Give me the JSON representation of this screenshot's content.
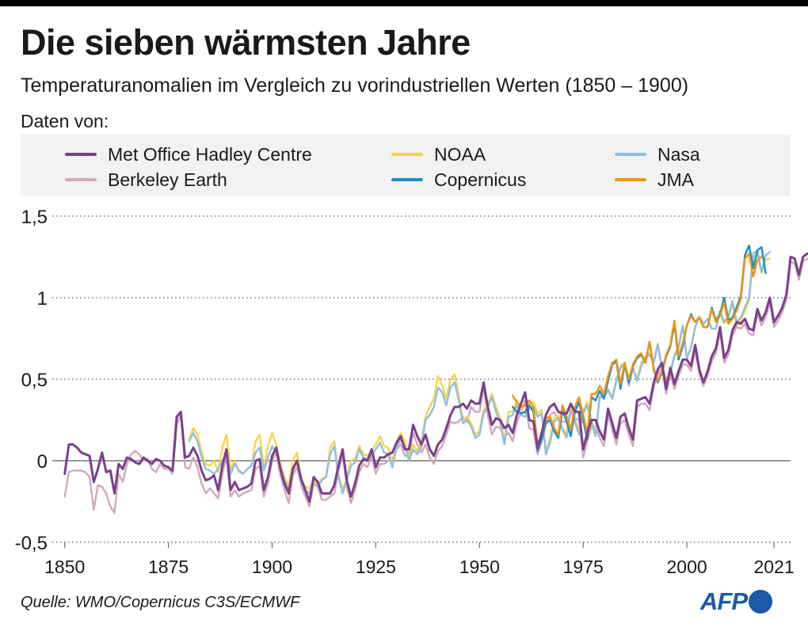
{
  "header": {
    "title": "Die sieben wärmsten Jahre",
    "subtitle": "Temperaturanomalien im Vergleich zu vorindustriellen Werten (1850 – 1900)",
    "legend_caption": "Daten von:"
  },
  "footer": {
    "source": "Quelle: WMO/Copernicus C3S/ECMWF",
    "logo": "AFP"
  },
  "colors": {
    "hadcrut": "#7b3f8c",
    "berkeley": "#d2a7bc",
    "noaa": "#f7d447",
    "copernicus": "#1b8ec7",
    "nasa": "#8ebfe3",
    "jma": "#f0930f",
    "grid": "#555555",
    "legend_bg": "#f2f2f2",
    "brand": "#1a5aa8"
  },
  "chart_data": {
    "type": "line",
    "title": "Die sieben wärmsten Jahre",
    "subtitle": "Temperaturanomalien im Vergleich zu vorindustriellen Werten (1850 – 1900)",
    "xlabel": "",
    "ylabel": "",
    "xlim": [
      1847,
      2025
    ],
    "ylim": [
      -0.5,
      1.5
    ],
    "x_ticks": [
      1850,
      1875,
      1900,
      1925,
      1950,
      1975,
      2000,
      2021
    ],
    "x_tick_labels": [
      "1850",
      "1875",
      "1900",
      "1925",
      "1950",
      "1975",
      "2000",
      "2021"
    ],
    "y_ticks": [
      -0.5,
      0,
      0.5,
      1,
      1.5
    ],
    "y_tick_labels": [
      "-0,5",
      "0",
      "0,5",
      "1",
      "1,5"
    ],
    "grid": "horizontal dotted",
    "legend_position": "top",
    "series": [
      {
        "name": "Met Office Hadley Centre",
        "color_key": "hadcrut",
        "x_start": 1850,
        "values": [
          -0.08,
          0.1,
          0.1,
          0.08,
          0.05,
          0.04,
          0.03,
          -0.13,
          -0.05,
          0.05,
          -0.07,
          -0.06,
          -0.2,
          -0.02,
          -0.05,
          0.02,
          0.01,
          -0.01,
          -0.02,
          0.02,
          0.0,
          -0.02,
          0.01,
          0.0,
          -0.03,
          -0.04,
          -0.06,
          0.27,
          0.3,
          0.02,
          0.03,
          0.08,
          0.03,
          -0.06,
          -0.12,
          -0.11,
          -0.09,
          -0.18,
          -0.03,
          0.07,
          -0.18,
          -0.13,
          -0.18,
          -0.17,
          -0.16,
          -0.14,
          0.0,
          0.01,
          -0.18,
          -0.1,
          0.03,
          0.08,
          -0.05,
          -0.14,
          -0.2,
          -0.05,
          0.0,
          -0.11,
          -0.18,
          -0.25,
          -0.1,
          -0.13,
          -0.2,
          -0.2,
          -0.2,
          -0.15,
          -0.03,
          0.07,
          -0.12,
          -0.22,
          -0.14,
          -0.03,
          0.01,
          0.0,
          0.07,
          -0.04,
          0.02,
          0.02,
          0.04,
          0.05,
          0.11,
          0.15,
          0.07,
          0.07,
          0.22,
          0.15,
          0.1,
          0.16,
          0.07,
          0.03,
          0.1,
          0.13,
          0.2,
          0.28,
          0.33,
          0.33,
          0.35,
          0.32,
          0.37,
          0.35,
          0.35,
          0.48,
          0.33,
          0.22,
          0.26,
          0.25,
          0.2,
          0.22,
          0.17,
          0.28,
          0.35,
          0.42,
          0.25,
          0.24,
          0.08,
          0.17,
          0.28,
          0.33,
          0.35,
          0.3,
          0.29,
          0.29,
          0.35,
          0.3,
          0.3,
          0.07,
          0.17,
          0.25,
          0.25,
          0.18,
          0.13,
          0.32,
          0.23,
          0.14,
          0.27,
          0.29,
          0.2,
          0.13,
          0.37,
          0.38,
          0.39,
          0.35,
          0.48,
          0.56,
          0.6,
          0.44,
          0.57,
          0.47,
          0.55,
          0.62,
          0.62,
          0.58,
          0.71,
          0.56,
          0.48,
          0.55,
          0.64,
          0.69,
          0.82,
          0.63,
          0.68,
          0.8,
          0.85,
          0.84,
          0.87,
          0.81,
          0.8,
          0.93,
          0.86,
          0.91,
          1.0,
          0.85,
          0.89,
          0.94,
          1.02,
          1.25,
          1.24,
          1.14,
          1.25,
          1.27
        ]
      },
      {
        "name": "Berkeley Earth",
        "color_key": "berkeley",
        "x_start": 1850,
        "values": [
          -0.22,
          -0.07,
          -0.06,
          -0.06,
          -0.06,
          -0.07,
          -0.1,
          -0.3,
          -0.15,
          -0.16,
          -0.2,
          -0.28,
          -0.32,
          -0.08,
          -0.13,
          -0.02,
          0.04,
          0.06,
          0.04,
          0.0,
          0.01,
          -0.05,
          -0.07,
          -0.02,
          -0.05,
          -0.05,
          -0.08,
          0.22,
          0.28,
          -0.04,
          -0.05,
          0.02,
          -0.04,
          -0.14,
          -0.2,
          -0.17,
          -0.2,
          -0.23,
          -0.08,
          0.02,
          -0.22,
          -0.18,
          -0.22,
          -0.2,
          -0.19,
          -0.18,
          -0.05,
          -0.03,
          -0.22,
          -0.14,
          0.0,
          0.05,
          -0.09,
          -0.18,
          -0.26,
          -0.09,
          -0.04,
          -0.15,
          -0.22,
          -0.28,
          -0.14,
          -0.16,
          -0.24,
          -0.24,
          -0.22,
          -0.2,
          -0.07,
          0.04,
          -0.16,
          -0.26,
          -0.18,
          -0.07,
          -0.02,
          -0.04,
          0.03,
          -0.08,
          -0.02,
          -0.02,
          0.0,
          0.01,
          0.07,
          0.1,
          0.03,
          0.03,
          0.17,
          0.1,
          0.05,
          0.1,
          0.02,
          -0.02,
          0.06,
          0.09,
          0.16,
          0.24,
          0.23,
          0.24,
          0.27,
          0.24,
          0.33,
          0.3,
          0.3,
          0.45,
          0.28,
          0.16,
          0.21,
          0.2,
          0.15,
          0.17,
          0.12,
          0.23,
          0.3,
          0.37,
          0.2,
          0.19,
          0.04,
          0.12,
          0.23,
          0.28,
          0.3,
          0.25,
          0.24,
          0.24,
          0.3,
          0.26,
          0.25,
          0.02,
          0.12,
          0.21,
          0.21,
          0.14,
          0.09,
          0.28,
          0.19,
          0.1,
          0.23,
          0.25,
          0.16,
          0.09,
          0.33,
          0.35,
          0.35,
          0.31,
          0.45,
          0.53,
          0.57,
          0.41,
          0.53,
          0.44,
          0.52,
          0.59,
          0.59,
          0.55,
          0.68,
          0.53,
          0.46,
          0.52,
          0.61,
          0.66,
          0.79,
          0.6,
          0.65,
          0.77,
          0.82,
          0.81,
          0.84,
          0.78,
          0.77,
          0.9,
          0.83,
          0.88,
          0.97,
          0.82,
          0.86,
          0.91,
          0.99,
          1.22,
          1.21,
          1.11,
          1.22,
          1.24
        ]
      },
      {
        "name": "NOAA",
        "color_key": "noaa",
        "x_start": 1880,
        "values": [
          0.13,
          0.2,
          0.16,
          0.05,
          -0.02,
          -0.03,
          0.0,
          -0.07,
          0.08,
          0.16,
          -0.05,
          0.0,
          -0.07,
          -0.08,
          -0.05,
          -0.03,
          0.12,
          0.16,
          -0.04,
          0.09,
          0.17,
          0.1,
          -0.02,
          -0.1,
          -0.15,
          0.0,
          0.05,
          -0.12,
          -0.16,
          -0.17,
          -0.12,
          -0.15,
          -0.11,
          -0.1,
          0.08,
          0.12,
          -0.08,
          -0.18,
          -0.1,
          0.0,
          0.01,
          0.09,
          0.04,
          0.03,
          0.06,
          0.1,
          0.15,
          0.09,
          0.08,
          -0.02,
          0.12,
          0.17,
          0.12,
          0.02,
          0.1,
          0.06,
          0.12,
          0.27,
          0.33,
          0.38,
          0.52,
          0.46,
          0.38,
          0.5,
          0.53,
          0.4,
          0.25,
          0.27,
          0.23,
          0.16,
          0.18,
          0.31,
          0.35,
          0.41,
          0.33,
          0.26,
          0.12,
          0.3,
          0.3,
          0.37,
          0.3,
          0.29,
          0.35,
          0.36,
          0.29,
          0.31,
          0.06,
          0.13,
          0.26,
          0.28,
          0.2,
          0.16,
          0.33,
          0.26,
          0.18,
          0.31,
          0.36,
          0.25,
          0.17,
          0.4,
          0.4,
          0.44,
          0.39,
          0.5,
          0.58,
          0.6,
          0.47,
          0.57,
          0.5,
          0.6,
          0.64,
          0.66,
          0.61,
          0.72,
          0.57,
          0.5,
          0.55,
          0.65,
          0.7,
          0.83,
          0.63,
          0.7,
          0.82,
          0.88,
          0.84,
          0.87,
          0.81,
          0.81,
          0.91,
          0.84,
          0.88,
          0.96,
          0.83,
          0.86,
          0.92,
          0.98,
          1.25,
          1.27,
          1.15,
          1.23,
          1.24
        ]
      },
      {
        "name": "Nasa",
        "color_key": "nasa",
        "x_start": 1880,
        "values": [
          0.12,
          0.17,
          0.12,
          0.02,
          -0.05,
          -0.06,
          -0.08,
          -0.05,
          0.0,
          0.05,
          -0.08,
          -0.02,
          -0.06,
          -0.08,
          -0.05,
          -0.03,
          0.05,
          0.08,
          -0.06,
          0.02,
          0.09,
          0.05,
          -0.05,
          -0.12,
          -0.18,
          -0.06,
          0.0,
          -0.14,
          -0.18,
          -0.2,
          -0.14,
          -0.16,
          -0.12,
          -0.1,
          0.04,
          0.09,
          -0.1,
          -0.2,
          -0.12,
          -0.03,
          -0.01,
          0.07,
          0.02,
          0.01,
          0.03,
          0.07,
          0.11,
          0.05,
          0.04,
          -0.04,
          0.08,
          0.13,
          0.09,
          0.0,
          0.07,
          0.04,
          0.09,
          0.25,
          0.28,
          0.33,
          0.45,
          0.42,
          0.34,
          0.45,
          0.48,
          0.37,
          0.23,
          0.25,
          0.21,
          0.14,
          0.16,
          0.29,
          0.33,
          0.39,
          0.3,
          0.23,
          0.1,
          0.27,
          0.28,
          0.34,
          0.28,
          0.27,
          0.32,
          0.33,
          0.27,
          0.29,
          0.04,
          0.11,
          0.24,
          0.26,
          0.19,
          0.14,
          0.31,
          0.24,
          0.16,
          0.29,
          0.34,
          0.23,
          0.15,
          0.39,
          0.39,
          0.43,
          0.38,
          0.49,
          0.57,
          0.6,
          0.46,
          0.57,
          0.49,
          0.58,
          0.63,
          0.65,
          0.6,
          0.71,
          0.56,
          0.49,
          0.54,
          0.64,
          0.69,
          0.83,
          0.63,
          0.69,
          0.82,
          0.88,
          0.84,
          0.87,
          0.81,
          0.81,
          0.92,
          0.85,
          0.89,
          0.98,
          0.85,
          0.88,
          0.94,
          1.0,
          1.27,
          1.29,
          1.16,
          1.26,
          1.28
        ]
      },
      {
        "name": "Copernicus",
        "color_key": "copernicus",
        "x_start": 1958,
        "values": [
          0.33,
          0.3,
          0.29,
          0.3,
          0.34,
          0.3,
          0.06,
          0.13,
          0.23,
          0.25,
          0.18,
          0.14,
          0.31,
          0.24,
          0.15,
          0.3,
          0.36,
          0.25,
          0.13,
          0.39,
          0.37,
          0.43,
          0.38,
          0.49,
          0.59,
          0.61,
          0.44,
          0.59,
          0.48,
          0.58,
          0.63,
          0.65,
          0.6,
          0.73,
          0.56,
          0.48,
          0.54,
          0.64,
          0.7,
          0.84,
          0.62,
          0.7,
          0.83,
          0.9,
          0.85,
          0.88,
          0.82,
          0.82,
          0.94,
          0.86,
          0.9,
          1.0,
          0.86,
          0.88,
          0.94,
          1.01,
          1.26,
          1.32,
          1.18,
          1.29,
          1.31,
          1.15
        ]
      },
      {
        "name": "JMA",
        "color_key": "jma",
        "x_start": 1958,
        "values": [
          0.4,
          0.36,
          0.33,
          0.34,
          0.37,
          0.33,
          0.1,
          0.16,
          0.26,
          0.27,
          0.2,
          0.16,
          0.34,
          0.27,
          0.19,
          0.33,
          0.39,
          0.28,
          0.17,
          0.41,
          0.41,
          0.46,
          0.41,
          0.52,
          0.6,
          0.62,
          0.47,
          0.6,
          0.5,
          0.59,
          0.64,
          0.66,
          0.6,
          0.73,
          0.57,
          0.49,
          0.55,
          0.65,
          0.71,
          0.86,
          0.64,
          0.72,
          0.83,
          0.89,
          0.85,
          0.88,
          0.82,
          0.82,
          0.93,
          0.85,
          0.89,
          0.97,
          0.84,
          0.87,
          0.92,
          0.99,
          1.24,
          1.27,
          1.13,
          1.23,
          1.25
        ]
      }
    ]
  }
}
